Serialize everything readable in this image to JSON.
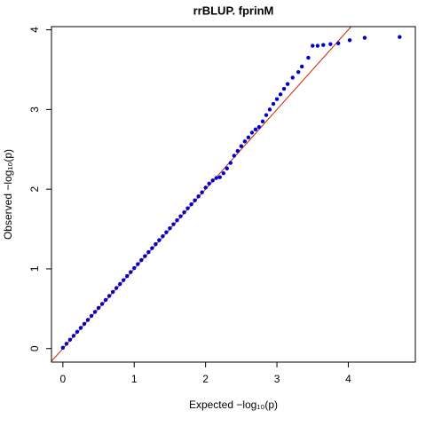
{
  "chart_data": {
    "type": "scatter",
    "title": "rrBLUP. fprinM",
    "xlabel": "Expected −log₁₀(p)",
    "ylabel": "Observed −log₁₀(p)",
    "x": [
      0,
      0.05,
      0.1,
      0.15,
      0.2,
      0.25,
      0.3,
      0.35,
      0.4,
      0.45,
      0.5,
      0.55,
      0.6,
      0.65,
      0.7,
      0.75,
      0.8,
      0.85,
      0.9,
      0.95,
      1.0,
      1.05,
      1.1,
      1.15,
      1.2,
      1.25,
      1.3,
      1.35,
      1.4,
      1.45,
      1.5,
      1.55,
      1.6,
      1.65,
      1.7,
      1.75,
      1.8,
      1.85,
      1.9,
      1.95,
      2.0,
      2.05,
      2.1,
      2.15,
      2.2,
      2.25,
      2.3,
      2.35,
      2.4,
      2.45,
      2.5,
      2.55,
      2.6,
      2.65,
      2.7,
      2.75,
      2.8,
      2.85,
      2.9,
      2.95,
      3.0,
      3.05,
      3.1,
      3.15,
      3.22,
      3.3,
      3.35,
      3.44,
      3.5,
      3.57,
      3.65,
      3.75,
      3.86,
      4.02,
      4.23,
      4.72
    ],
    "y": [
      0.01,
      0.06,
      0.11,
      0.16,
      0.21,
      0.26,
      0.31,
      0.36,
      0.41,
      0.46,
      0.51,
      0.56,
      0.61,
      0.66,
      0.71,
      0.76,
      0.81,
      0.86,
      0.91,
      0.96,
      1.01,
      1.06,
      1.11,
      1.16,
      1.21,
      1.26,
      1.31,
      1.36,
      1.41,
      1.46,
      1.51,
      1.56,
      1.61,
      1.66,
      1.71,
      1.76,
      1.81,
      1.86,
      1.91,
      1.96,
      2.02,
      2.07,
      2.11,
      2.14,
      2.15,
      2.2,
      2.26,
      2.33,
      2.42,
      2.48,
      2.54,
      2.6,
      2.65,
      2.71,
      2.75,
      2.78,
      2.85,
      2.93,
      3.0,
      3.07,
      3.13,
      3.19,
      3.26,
      3.32,
      3.4,
      3.47,
      3.54,
      3.65,
      3.8,
      3.8,
      3.81,
      3.82,
      3.83,
      3.87,
      3.9,
      3.91
    ],
    "color": "#0000cd",
    "line_color": "#cc2200",
    "xlim": [
      -0.16,
      4.94
    ],
    "ylim": [
      -0.17,
      4.04
    ],
    "xticks": [
      0,
      1,
      2,
      3,
      4
    ],
    "yticks": [
      0,
      1,
      2,
      3,
      4
    ]
  }
}
